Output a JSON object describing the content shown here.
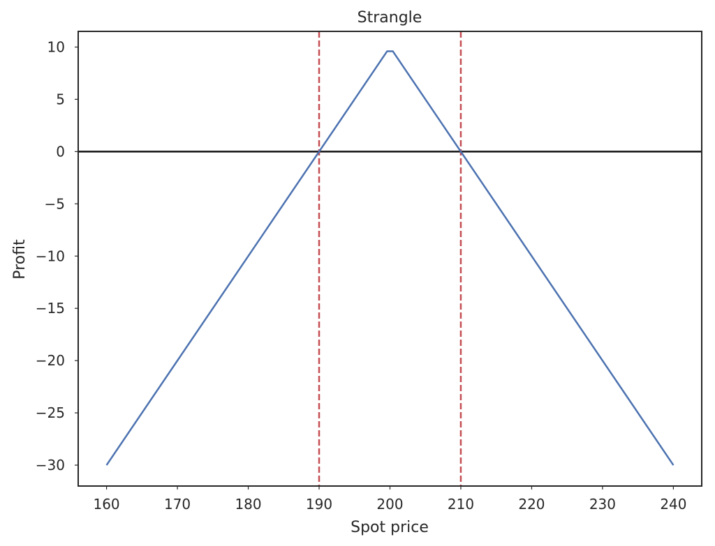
{
  "chart_data": {
    "type": "line",
    "title": "Strangle",
    "xlabel": "Spot price",
    "ylabel": "Profit",
    "xlim": [
      156,
      244
    ],
    "ylim": [
      -32,
      11.5
    ],
    "xticks": [
      160,
      170,
      180,
      190,
      200,
      210,
      220,
      230,
      240
    ],
    "yticks": [
      10,
      5,
      0,
      -5,
      -10,
      -15,
      -20,
      -25,
      -30
    ],
    "ytick_labels": [
      "10",
      "5",
      "0",
      "−5",
      "−10",
      "−15",
      "−20",
      "−25",
      "−30"
    ],
    "grid": false,
    "series": [
      {
        "color": "#4c72b0",
        "x": [
          160,
          199.6,
          200.4,
          240
        ],
        "y": [
          -30,
          9.6,
          9.6,
          -30
        ]
      }
    ],
    "hlines": [
      {
        "y": 0,
        "color": "#111111",
        "style": "solid"
      }
    ],
    "vlines": [
      {
        "x": 190,
        "color": "#c44e52",
        "style": "dashed"
      },
      {
        "x": 210,
        "color": "#c44e52",
        "style": "dashed"
      }
    ]
  }
}
